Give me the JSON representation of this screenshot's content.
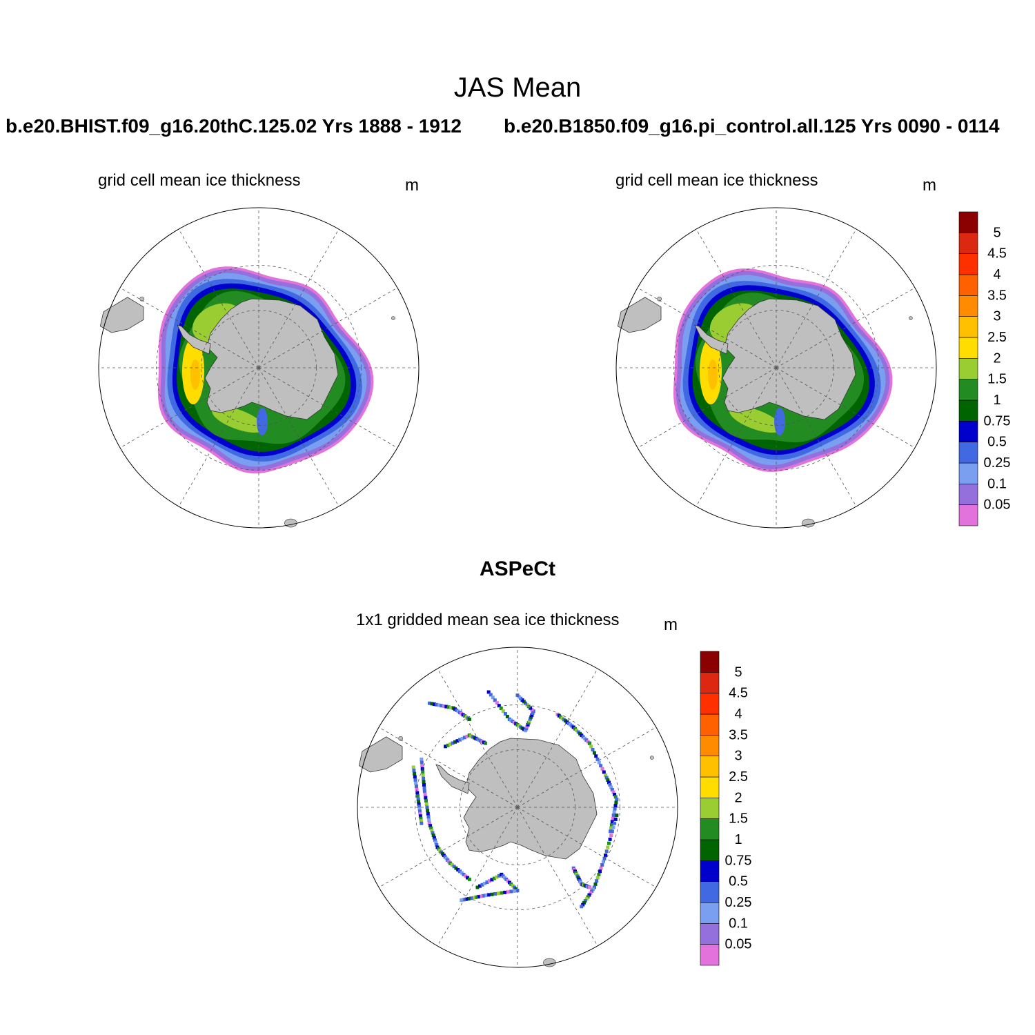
{
  "title": "JAS Mean",
  "panels": [
    {
      "case_title": "b.e20.BHIST.f09_g16.20thC.125.02  Yrs 1888 - 1912",
      "left_string": "grid cell mean ice thickness",
      "units": "m"
    },
    {
      "case_title": "b.e20.B1850.f09_g16.pi_control.all.125  Yrs 0090 - 0114",
      "left_string": "grid cell mean ice thickness",
      "units": "m"
    },
    {
      "case_title": "ASPeCt",
      "left_string": "1x1 gridded mean sea ice thickness",
      "units": "m"
    }
  ],
  "colorbar": {
    "units": "m",
    "levels": [
      "0.05",
      "0.1",
      "0.25",
      "0.5",
      "0.75",
      "1",
      "1.5",
      "2",
      "2.5",
      "3",
      "3.5",
      "4",
      "4.5",
      "5"
    ],
    "colors": [
      "#e373dc",
      "#9370db",
      "#7a9ef0",
      "#4169e1",
      "#0000cd",
      "#006400",
      "#228b22",
      "#9acd32",
      "#ffdd00",
      "#ffc000",
      "#ff8c00",
      "#ff6000",
      "#ff3000",
      "#dc2810",
      "#8b0000"
    ]
  },
  "map": {
    "projection": "south-polar-stereographic",
    "land_color": "#bfbfbf",
    "gridline_color": "#555555"
  }
}
